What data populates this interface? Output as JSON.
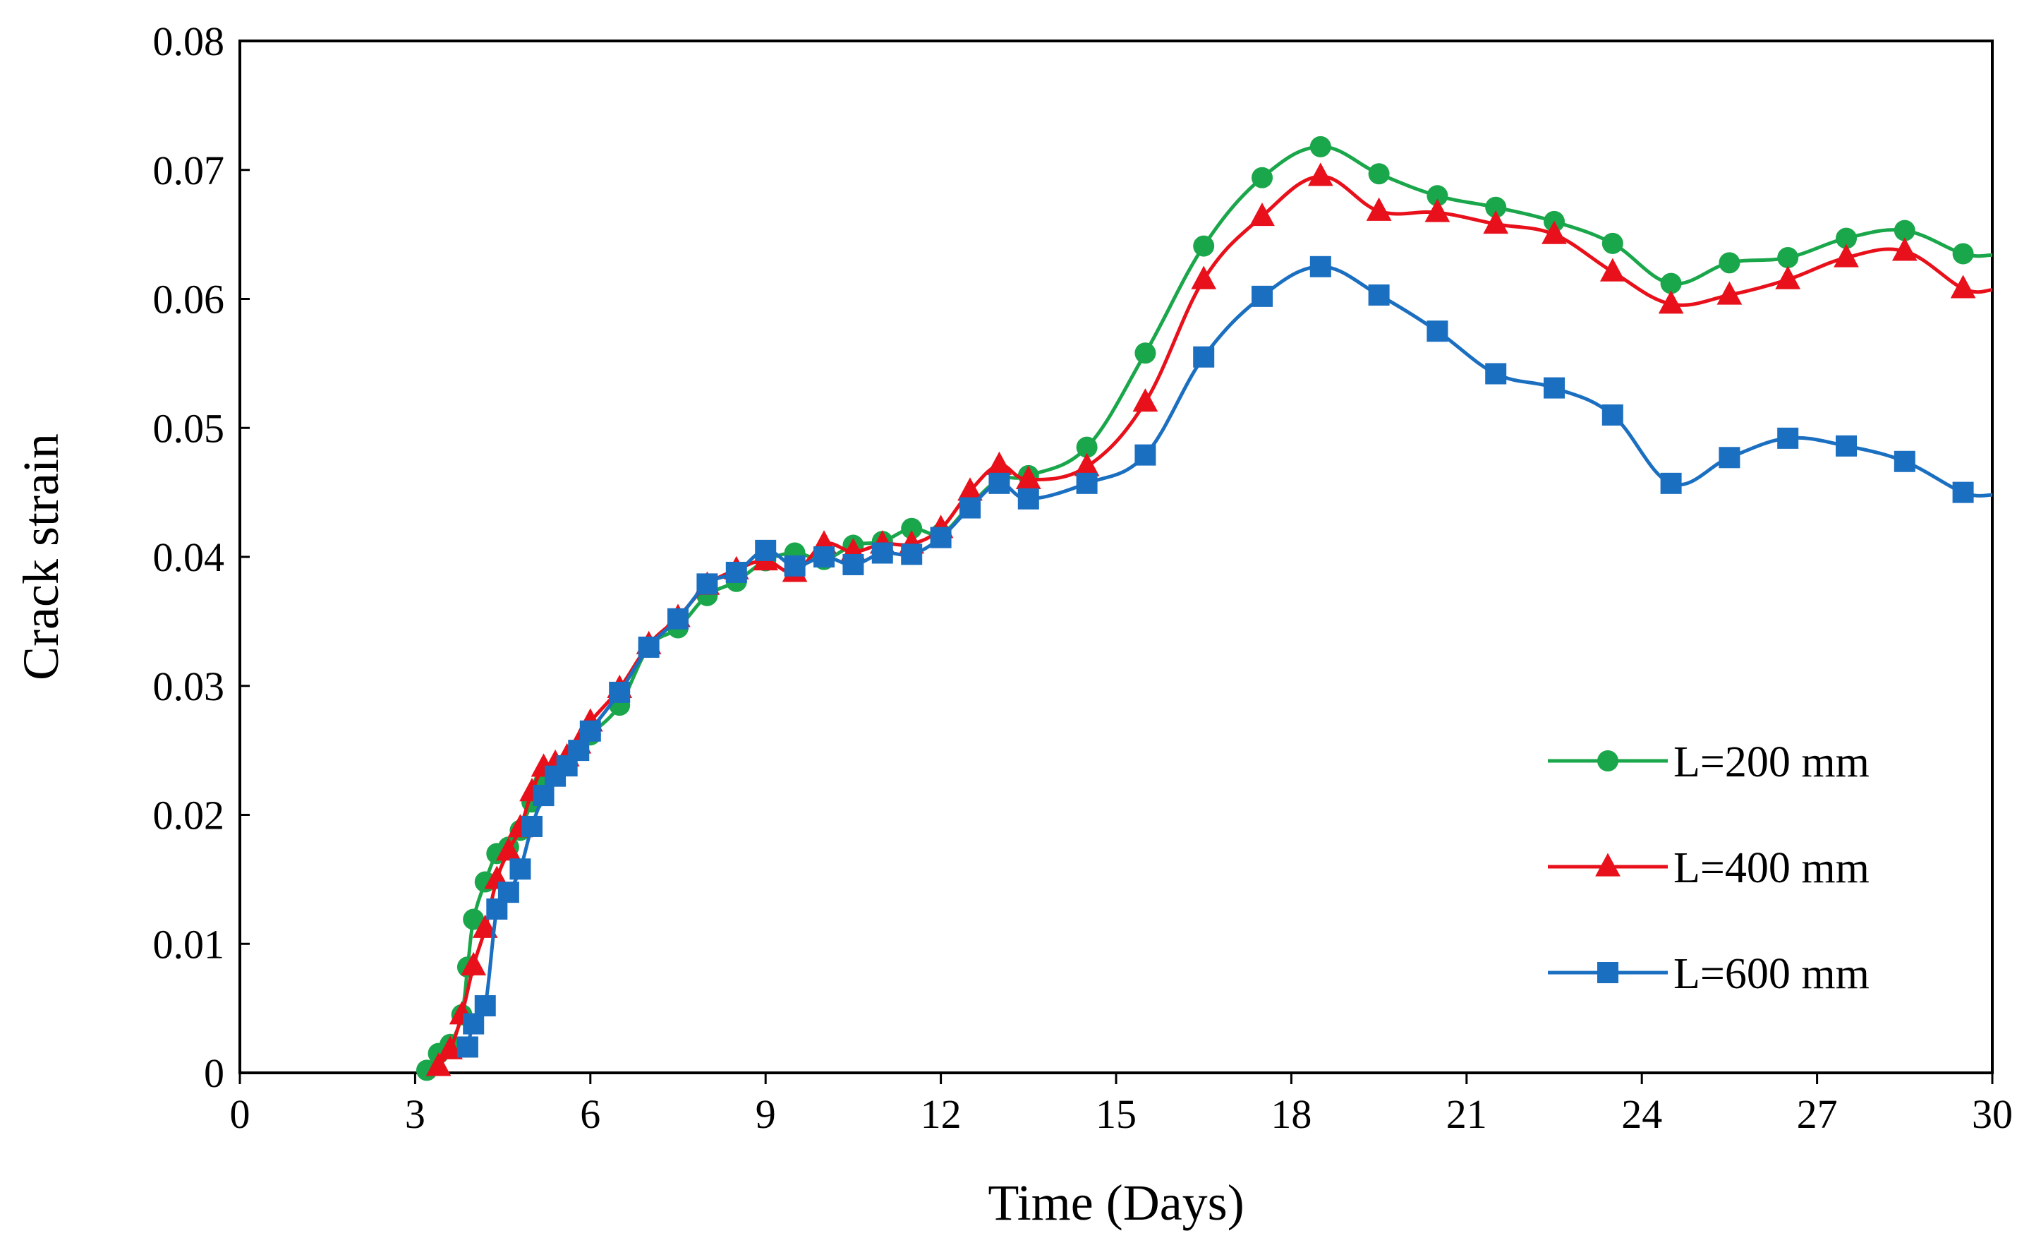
{
  "chart_data": {
    "type": "line",
    "title": "",
    "xlabel": "Time (Days)",
    "ylabel": "Crack strain",
    "xlim": [
      0,
      30
    ],
    "ylim": [
      0,
      0.08
    ],
    "xticks": [
      0,
      3,
      6,
      9,
      12,
      15,
      18,
      21,
      24,
      27,
      30
    ],
    "yticks": [
      0,
      0.01,
      0.02,
      0.03,
      0.04,
      0.05,
      0.06,
      0.07,
      0.08
    ],
    "xtick_labels": [
      "0",
      "3",
      "6",
      "9",
      "12",
      "15",
      "18",
      "21",
      "24",
      "27",
      "30"
    ],
    "ytick_labels": [
      "0",
      "0.01",
      "0.02",
      "0.03",
      "0.04",
      "0.05",
      "0.06",
      "0.07",
      "0.08"
    ],
    "grid": false,
    "legend_position": "lower-right",
    "series": [
      {
        "name": "L=200 mm",
        "color": "#1aa64a",
        "marker": "circle",
        "x": [
          3.2,
          3.4,
          3.6,
          3.8,
          3.9,
          4.0,
          4.2,
          4.4,
          4.6,
          4.8,
          5.0,
          5.2,
          5.4,
          5.6,
          5.8,
          6.0,
          6.5,
          7.0,
          7.5,
          8.0,
          8.5,
          9.0,
          9.5,
          10.0,
          10.5,
          11.0,
          11.5,
          12.0,
          12.5,
          13.0,
          13.5,
          14.5,
          15.5,
          16.5,
          17.5,
          18.5,
          19.5,
          20.5,
          21.5,
          22.5,
          23.5,
          24.5,
          25.5,
          26.5,
          27.5,
          28.5,
          29.5,
          30.0
        ],
        "y": [
          0.0002,
          0.0015,
          0.0022,
          0.0045,
          0.0082,
          0.0119,
          0.0148,
          0.017,
          0.0175,
          0.0188,
          0.021,
          0.0225,
          0.0232,
          0.024,
          0.025,
          0.0262,
          0.0285,
          0.033,
          0.0345,
          0.037,
          0.0381,
          0.0397,
          0.0403,
          0.0398,
          0.0409,
          0.0412,
          0.0422,
          0.0418,
          0.044,
          0.046,
          0.0463,
          0.0485,
          0.0558,
          0.0641,
          0.0694,
          0.0718,
          0.0697,
          0.068,
          0.0671,
          0.066,
          0.0643,
          0.0612,
          0.0628,
          0.0632,
          0.0647,
          0.0653,
          0.0635,
          0.0634
        ]
      },
      {
        "name": "L=400 mm",
        "color": "#e8101a",
        "marker": "triangle",
        "x": [
          3.4,
          3.6,
          3.8,
          4.0,
          4.2,
          4.4,
          4.6,
          4.8,
          5.0,
          5.2,
          5.4,
          5.6,
          5.8,
          6.0,
          6.5,
          7.0,
          7.5,
          8.0,
          8.5,
          9.0,
          9.5,
          10.0,
          10.5,
          11.0,
          11.5,
          12.0,
          12.5,
          13.0,
          13.5,
          14.5,
          15.5,
          16.5,
          17.5,
          18.5,
          19.5,
          20.5,
          21.5,
          22.5,
          23.5,
          24.5,
          25.5,
          26.5,
          27.5,
          28.5,
          29.5,
          30.0
        ],
        "y": [
          0.0005,
          0.0018,
          0.0045,
          0.0083,
          0.0112,
          0.015,
          0.0172,
          0.019,
          0.0218,
          0.0237,
          0.024,
          0.0245,
          0.0255,
          0.0272,
          0.0298,
          0.0332,
          0.0353,
          0.0378,
          0.039,
          0.0397,
          0.0388,
          0.041,
          0.0404,
          0.041,
          0.041,
          0.0422,
          0.0451,
          0.0471,
          0.046,
          0.047,
          0.052,
          0.0615,
          0.0664,
          0.0695,
          0.0668,
          0.0667,
          0.0658,
          0.065,
          0.0621,
          0.0596,
          0.0603,
          0.0615,
          0.0632,
          0.0637,
          0.0608,
          0.0607
        ]
      },
      {
        "name": "L=600 mm",
        "color": "#1b6fc0",
        "marker": "square",
        "x": [
          3.9,
          4.0,
          4.2,
          4.4,
          4.6,
          4.8,
          5.0,
          5.2,
          5.4,
          5.6,
          5.8,
          6.0,
          6.5,
          7.0,
          7.5,
          8.0,
          8.5,
          9.0,
          9.5,
          10.0,
          10.5,
          11.0,
          11.5,
          12.0,
          12.5,
          13.0,
          13.5,
          14.5,
          15.5,
          16.5,
          17.5,
          18.5,
          19.5,
          20.5,
          21.5,
          22.5,
          23.5,
          24.5,
          25.5,
          26.5,
          27.5,
          28.5,
          29.5,
          30.0
        ],
        "y": [
          0.002,
          0.0038,
          0.0052,
          0.0127,
          0.014,
          0.0158,
          0.0191,
          0.0215,
          0.023,
          0.0238,
          0.025,
          0.0265,
          0.0295,
          0.033,
          0.0352,
          0.0379,
          0.0388,
          0.0405,
          0.0393,
          0.04,
          0.0394,
          0.0403,
          0.0402,
          0.0415,
          0.0438,
          0.0457,
          0.0445,
          0.0457,
          0.0479,
          0.0555,
          0.0602,
          0.0625,
          0.0603,
          0.0575,
          0.0542,
          0.0531,
          0.051,
          0.0457,
          0.0477,
          0.0492,
          0.0486,
          0.0474,
          0.045,
          0.0448
        ]
      }
    ]
  }
}
